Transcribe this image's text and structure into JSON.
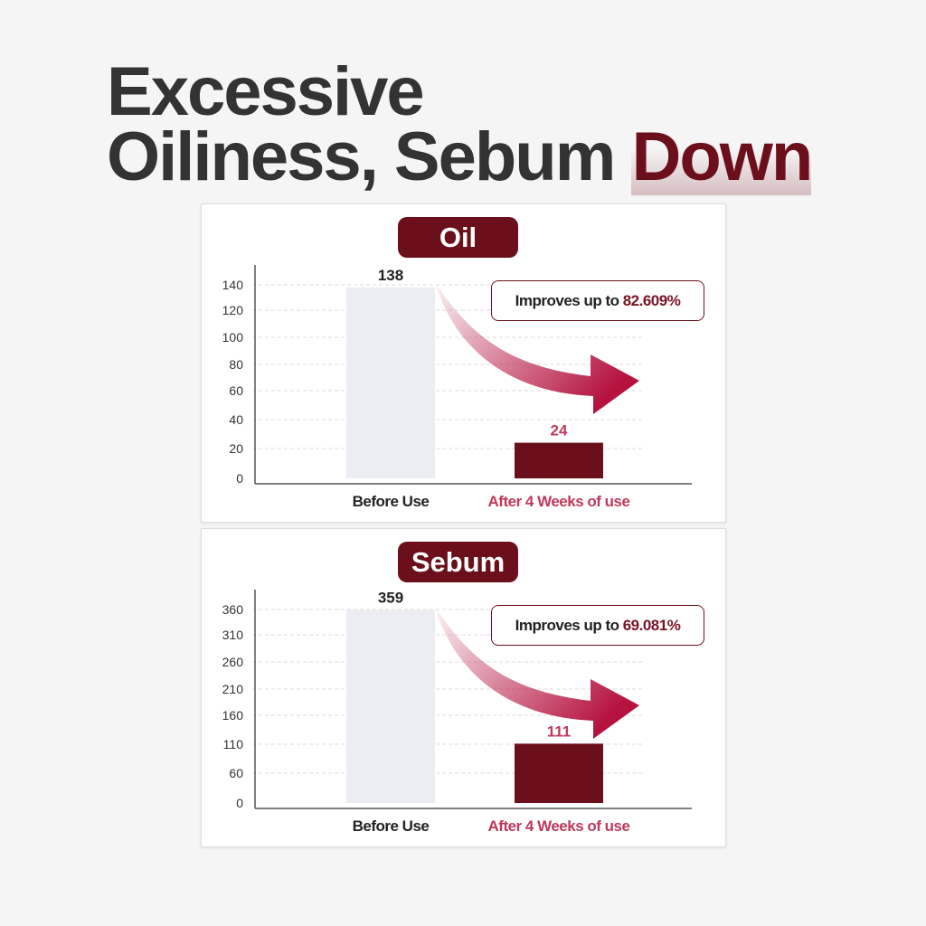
{
  "headline": {
    "line1": "Excessive",
    "line2": "Oiliness, Sebum",
    "accent": "Down"
  },
  "colors": {
    "accent": "#6b0f1a",
    "after_label": "#c0395a",
    "before_bar": "#ecedf2",
    "arrow": "#b5123e"
  },
  "chart_data": [
    {
      "type": "bar",
      "title": "Oil",
      "categories": [
        "Before Use",
        "After 4 Weeks of use"
      ],
      "values": [
        138,
        24
      ],
      "value_labels": [
        "138",
        "24"
      ],
      "yticks": [
        0,
        20,
        40,
        60,
        80,
        100,
        120,
        140
      ],
      "ylim": [
        0,
        140
      ],
      "grid": true,
      "annotation": {
        "text": "Improves up to ",
        "value": "82.609%"
      }
    },
    {
      "type": "bar",
      "title": "Sebum",
      "categories": [
        "Before Use",
        "After 4 Weeks of use"
      ],
      "values": [
        359,
        111
      ],
      "value_labels": [
        "359",
        "111"
      ],
      "yticks": [
        0,
        60,
        110,
        160,
        210,
        260,
        310,
        360
      ],
      "ylim": [
        0,
        360
      ],
      "grid": true,
      "annotation": {
        "text": "Improves up to ",
        "value": "69.081%"
      }
    }
  ]
}
